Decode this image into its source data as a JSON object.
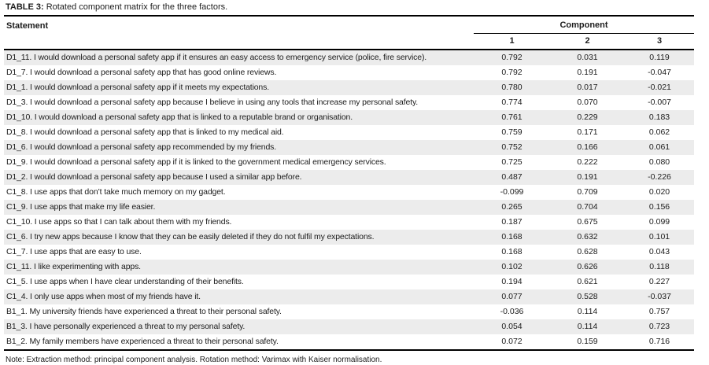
{
  "page": {
    "title_label": "TABLE 3:",
    "title_text": "Rotated component matrix for the three factors.",
    "note": "Note: Extraction method: principal component analysis. Rotation method: Varimax with Kaiser normalisation."
  },
  "table": {
    "statement_header": "Statement",
    "component_header": "Component",
    "component_columns": [
      "1",
      "2",
      "3"
    ],
    "rows": [
      {
        "statement": "D1_11. I would download a personal safety app if it ensures an easy access to emergency service (police, fire service).",
        "c1": "0.792",
        "c2": "0.031",
        "c3": "0.119"
      },
      {
        "statement": "D1_7. I would download a personal safety app that has good online reviews.",
        "c1": "0.792",
        "c2": "0.191",
        "c3": "-0.047"
      },
      {
        "statement": "D1_1. I would download a personal safety app if it meets my expectations.",
        "c1": "0.780",
        "c2": "0.017",
        "c3": "-0.021"
      },
      {
        "statement": "D1_3. I would download a personal safety app because I believe in using any tools that increase my personal safety.",
        "c1": "0.774",
        "c2": "0.070",
        "c3": "-0.007"
      },
      {
        "statement": "D1_10. I would download a personal safety app that is linked to a reputable brand or organisation.",
        "c1": "0.761",
        "c2": "0.229",
        "c3": "0.183"
      },
      {
        "statement": "D1_8. I would download a personal safety app that is linked to my medical aid.",
        "c1": "0.759",
        "c2": "0.171",
        "c3": "0.062"
      },
      {
        "statement": "D1_6. I would download a personal safety app recommended by my friends.",
        "c1": "0.752",
        "c2": "0.166",
        "c3": "0.061"
      },
      {
        "statement": "D1_9. I would download a personal safety app if it is linked to the government medical emergency services.",
        "c1": "0.725",
        "c2": "0.222",
        "c3": "0.080"
      },
      {
        "statement": "D1_2. I would download a personal safety app because I used a similar app before.",
        "c1": "0.487",
        "c2": "0.191",
        "c3": "-0.226"
      },
      {
        "statement": "C1_8. I use apps that don’t take much memory on my gadget.",
        "c1": "-0.099",
        "c2": "0.709",
        "c3": "0.020"
      },
      {
        "statement": "C1_9. I use apps that make my life easier.",
        "c1": "0.265",
        "c2": "0.704",
        "c3": "0.156"
      },
      {
        "statement": "C1_10. I use apps so that I can talk about them with my friends.",
        "c1": "0.187",
        "c2": "0.675",
        "c3": "0.099"
      },
      {
        "statement": "C1_6. I try new apps because I know that they can be easily deleted if they do not fulfil my expectations.",
        "c1": "0.168",
        "c2": "0.632",
        "c3": "0.101"
      },
      {
        "statement": "C1_7. I use apps that are easy to use.",
        "c1": "0.168",
        "c2": "0.628",
        "c3": "0.043"
      },
      {
        "statement": "C1_11. I like experimenting with apps.",
        "c1": "0.102",
        "c2": "0.626",
        "c3": "0.118"
      },
      {
        "statement": "C1_5. I use apps when I have clear understanding of their benefits.",
        "c1": "0.194",
        "c2": "0.621",
        "c3": "0.227"
      },
      {
        "statement": "C1_4. I only use apps when most of my friends have it.",
        "c1": "0.077",
        "c2": "0.528",
        "c3": "-0.037"
      },
      {
        "statement": "B1_1. My university friends have experienced a threat to their personal safety.",
        "c1": "-0.036",
        "c2": "0.114",
        "c3": "0.757"
      },
      {
        "statement": "B1_3. I have personally experienced a threat to my personal safety.",
        "c1": "0.054",
        "c2": "0.114",
        "c3": "0.723"
      },
      {
        "statement": "B1_2. My family members have experienced a threat to their personal safety.",
        "c1": "0.072",
        "c2": "0.159",
        "c3": "0.716"
      }
    ]
  },
  "colors": {
    "text": "#1c1c1c",
    "stripe": "#ececec",
    "rule": "#000000",
    "background": "#ffffff"
  }
}
